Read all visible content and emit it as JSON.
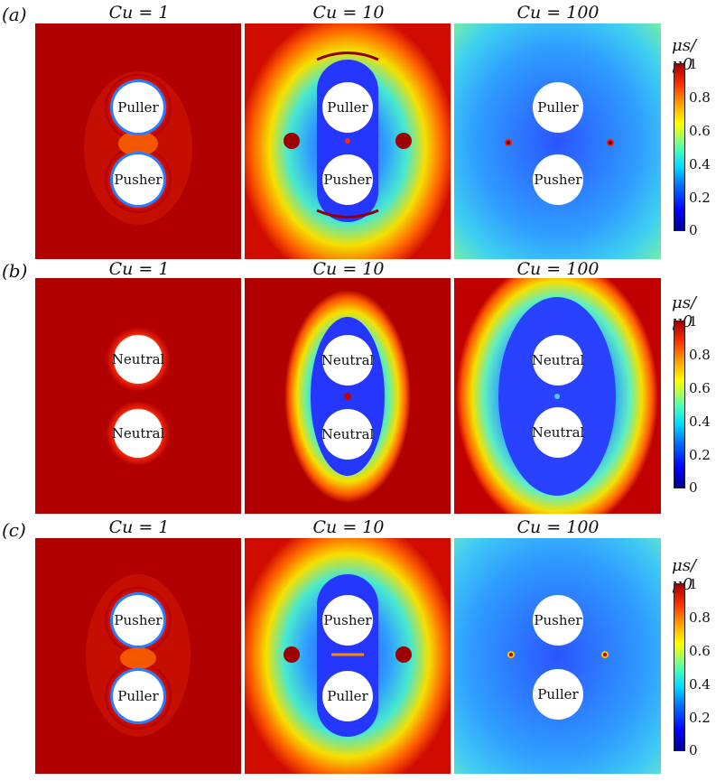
{
  "rows": [
    {
      "label": "(a)",
      "panels": [
        {
          "title": "Cu = 1",
          "top_disk": "Puller",
          "bottom_disk": "Pusher"
        },
        {
          "title": "Cu = 10",
          "top_disk": "Puller",
          "bottom_disk": "Pusher"
        },
        {
          "title": "Cu = 100",
          "top_disk": "Puller",
          "bottom_disk": "Pusher"
        }
      ]
    },
    {
      "label": "(b)",
      "panels": [
        {
          "title": "Cu = 1",
          "top_disk": "Neutral",
          "bottom_disk": "Neutral"
        },
        {
          "title": "Cu = 10",
          "top_disk": "Neutral",
          "bottom_disk": "Neutral"
        },
        {
          "title": "Cu = 100",
          "top_disk": "Neutral",
          "bottom_disk": "Neutral"
        }
      ]
    },
    {
      "label": "(c)",
      "panels": [
        {
          "title": "Cu = 1",
          "top_disk": "Pusher",
          "bottom_disk": "Puller"
        },
        {
          "title": "Cu = 10",
          "top_disk": "Pusher",
          "bottom_disk": "Puller"
        },
        {
          "title": "Cu = 100",
          "top_disk": "Pusher",
          "bottom_disk": "Puller"
        }
      ]
    }
  ],
  "colorbar": {
    "title": "μs/μ0",
    "ticks": [
      "1",
      "0.8",
      "0.6",
      "0.4",
      "0.2",
      "0"
    ],
    "colormap": "jet"
  },
  "colors": {
    "dark_red": "#a50000",
    "red": "#e81e0b",
    "orange": "#ff8c00",
    "yellow": "#f5e000",
    "cyan": "#1fc8ff",
    "light_blue": "#32a6ff",
    "blue": "#2040ff",
    "dark_blue": "#1a26e6"
  }
}
